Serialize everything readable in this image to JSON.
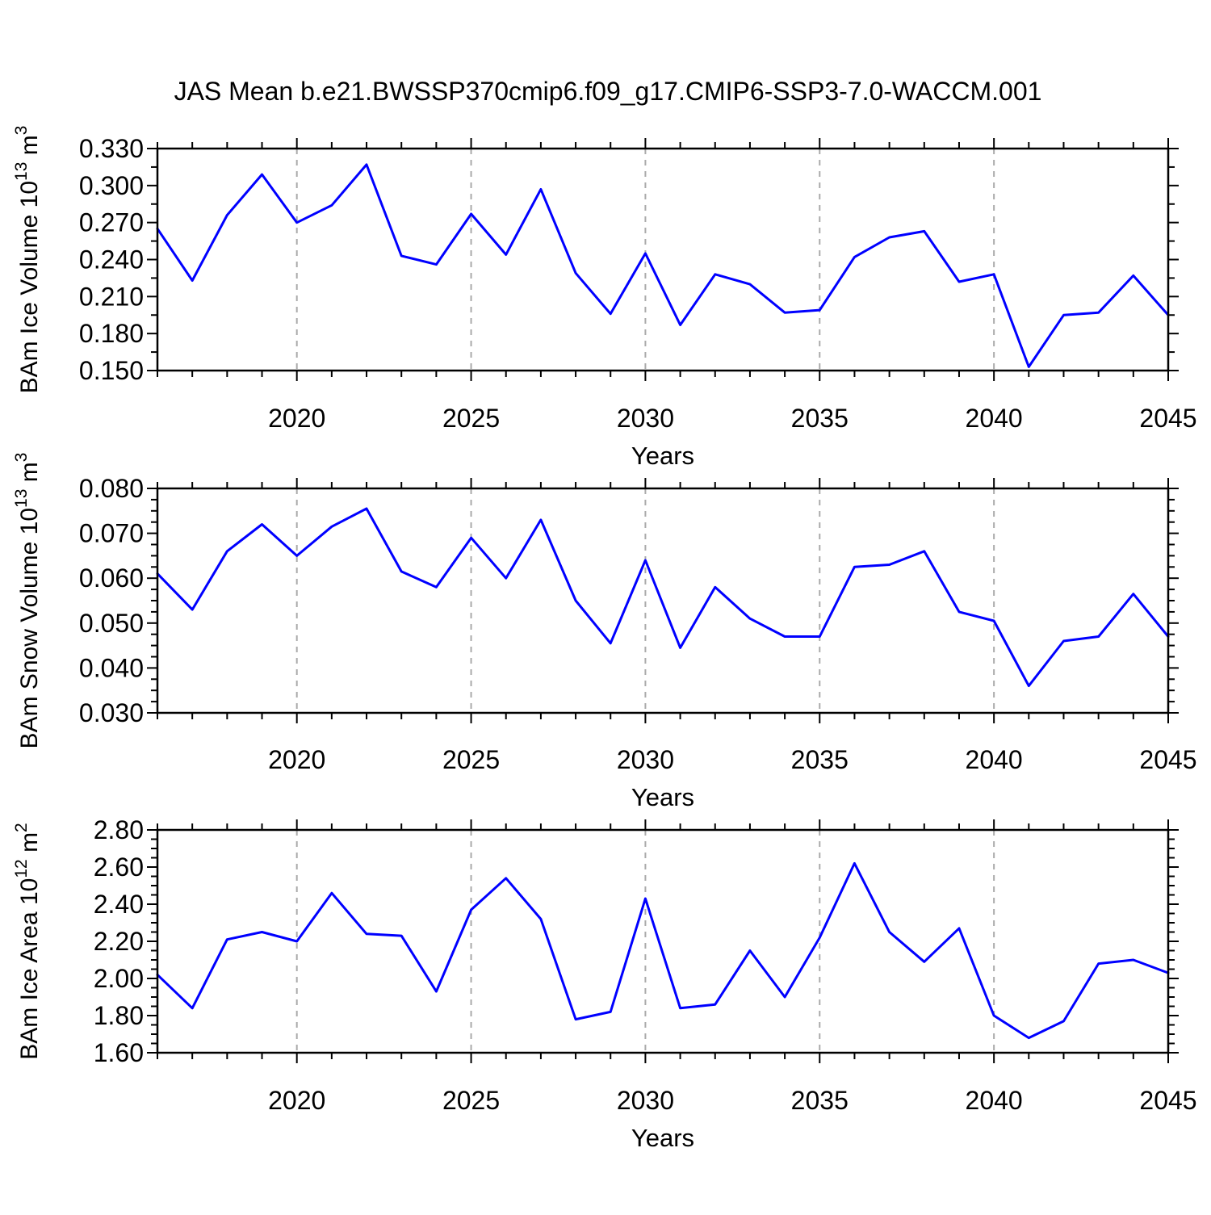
{
  "title": "JAS Mean b.e21.BWSSP370cmip6.f09_g17.CMIP6-SSP3-7.0-WACCM.001",
  "colors": {
    "line": "#0000ff",
    "grid": "#aaaaaa",
    "axis": "#000000",
    "background": "#ffffff"
  },
  "x_axis": {
    "label": "Years",
    "range": [
      2016,
      2045
    ],
    "tick_values": [
      2020,
      2025,
      2030,
      2035,
      2040,
      2045
    ],
    "tick_labels": [
      "2020",
      "2025",
      "2030",
      "2035",
      "2040",
      "2045"
    ],
    "minor_step": 1,
    "grid_years": [
      2020,
      2025,
      2030,
      2035,
      2040
    ]
  },
  "chart_data": [
    {
      "id": "ice-volume",
      "type": "line",
      "ylabel": "BAm Ice Volume 10^13 m^3",
      "ylabel_parts": {
        "base": "BAm Ice Volume 10",
        "exp": "13",
        "unit": " m",
        "unit_exp": "3"
      },
      "xlabel": "Years",
      "ylim": [
        0.15,
        0.33
      ],
      "ytick_values": [
        0.15,
        0.18,
        0.21,
        0.24,
        0.27,
        0.3,
        0.33
      ],
      "ytick_labels": [
        "0.150",
        "0.180",
        "0.210",
        "0.240",
        "0.270",
        "0.300",
        "0.330"
      ],
      "ytick_minor_step": 0.015,
      "grid": "x-dashed",
      "legend": "none",
      "years": [
        2016,
        2017,
        2018,
        2019,
        2020,
        2021,
        2022,
        2023,
        2024,
        2025,
        2026,
        2027,
        2028,
        2029,
        2030,
        2031,
        2032,
        2033,
        2034,
        2035,
        2036,
        2037,
        2038,
        2039,
        2040,
        2041,
        2042,
        2043,
        2044,
        2045
      ],
      "values": [
        0.265,
        0.223,
        0.276,
        0.309,
        0.27,
        0.284,
        0.317,
        0.243,
        0.236,
        0.277,
        0.244,
        0.297,
        0.229,
        0.196,
        0.245,
        0.187,
        0.228,
        0.22,
        0.197,
        0.199,
        0.242,
        0.258,
        0.263,
        0.222,
        0.228,
        0.153,
        0.195,
        0.197,
        0.227,
        0.195
      ]
    },
    {
      "id": "snow-volume",
      "type": "line",
      "ylabel": "BAm Snow Volume 10^13 m^3",
      "ylabel_parts": {
        "base": "BAm Snow Volume 10",
        "exp": "13",
        "unit": " m",
        "unit_exp": "3"
      },
      "xlabel": "Years",
      "ylim": [
        0.03,
        0.08
      ],
      "ytick_values": [
        0.03,
        0.04,
        0.05,
        0.06,
        0.07,
        0.08
      ],
      "ytick_labels": [
        "0.030",
        "0.040",
        "0.050",
        "0.060",
        "0.070",
        "0.080"
      ],
      "ytick_minor_step": 0.0025,
      "grid": "x-dashed",
      "legend": "none",
      "years": [
        2016,
        2017,
        2018,
        2019,
        2020,
        2021,
        2022,
        2023,
        2024,
        2025,
        2026,
        2027,
        2028,
        2029,
        2030,
        2031,
        2032,
        2033,
        2034,
        2035,
        2036,
        2037,
        2038,
        2039,
        2040,
        2041,
        2042,
        2043,
        2044,
        2045
      ],
      "values": [
        0.061,
        0.053,
        0.066,
        0.072,
        0.065,
        0.0715,
        0.0755,
        0.0615,
        0.058,
        0.069,
        0.06,
        0.073,
        0.055,
        0.0455,
        0.064,
        0.0445,
        0.058,
        0.051,
        0.047,
        0.047,
        0.0625,
        0.063,
        0.066,
        0.0525,
        0.0505,
        0.036,
        0.046,
        0.047,
        0.0565,
        0.047
      ]
    },
    {
      "id": "ice-area",
      "type": "line",
      "ylabel": "BAm Ice Area 10^12 m^2",
      "ylabel_parts": {
        "base": "BAm Ice Area 10",
        "exp": "12",
        "unit": " m",
        "unit_exp": "2"
      },
      "xlabel": "Years",
      "ylim": [
        1.6,
        2.8
      ],
      "ytick_values": [
        1.6,
        1.8,
        2.0,
        2.2,
        2.4,
        2.6,
        2.8
      ],
      "ytick_labels": [
        "1.60",
        "1.80",
        "2.00",
        "2.20",
        "2.40",
        "2.60",
        "2.80"
      ],
      "ytick_minor_step": 0.05,
      "grid": "x-dashed",
      "legend": "none",
      "years": [
        2016,
        2017,
        2018,
        2019,
        2020,
        2021,
        2022,
        2023,
        2024,
        2025,
        2026,
        2027,
        2028,
        2029,
        2030,
        2031,
        2032,
        2033,
        2034,
        2035,
        2036,
        2037,
        2038,
        2039,
        2040,
        2041,
        2042,
        2043,
        2044,
        2045
      ],
      "values": [
        2.02,
        1.84,
        2.21,
        2.25,
        2.2,
        2.46,
        2.24,
        2.23,
        1.93,
        2.37,
        2.54,
        2.32,
        1.78,
        1.82,
        2.43,
        1.84,
        1.86,
        2.15,
        1.9,
        2.22,
        2.62,
        2.25,
        2.09,
        2.27,
        1.8,
        1.68,
        1.77,
        2.08,
        2.1,
        2.03
      ]
    }
  ]
}
